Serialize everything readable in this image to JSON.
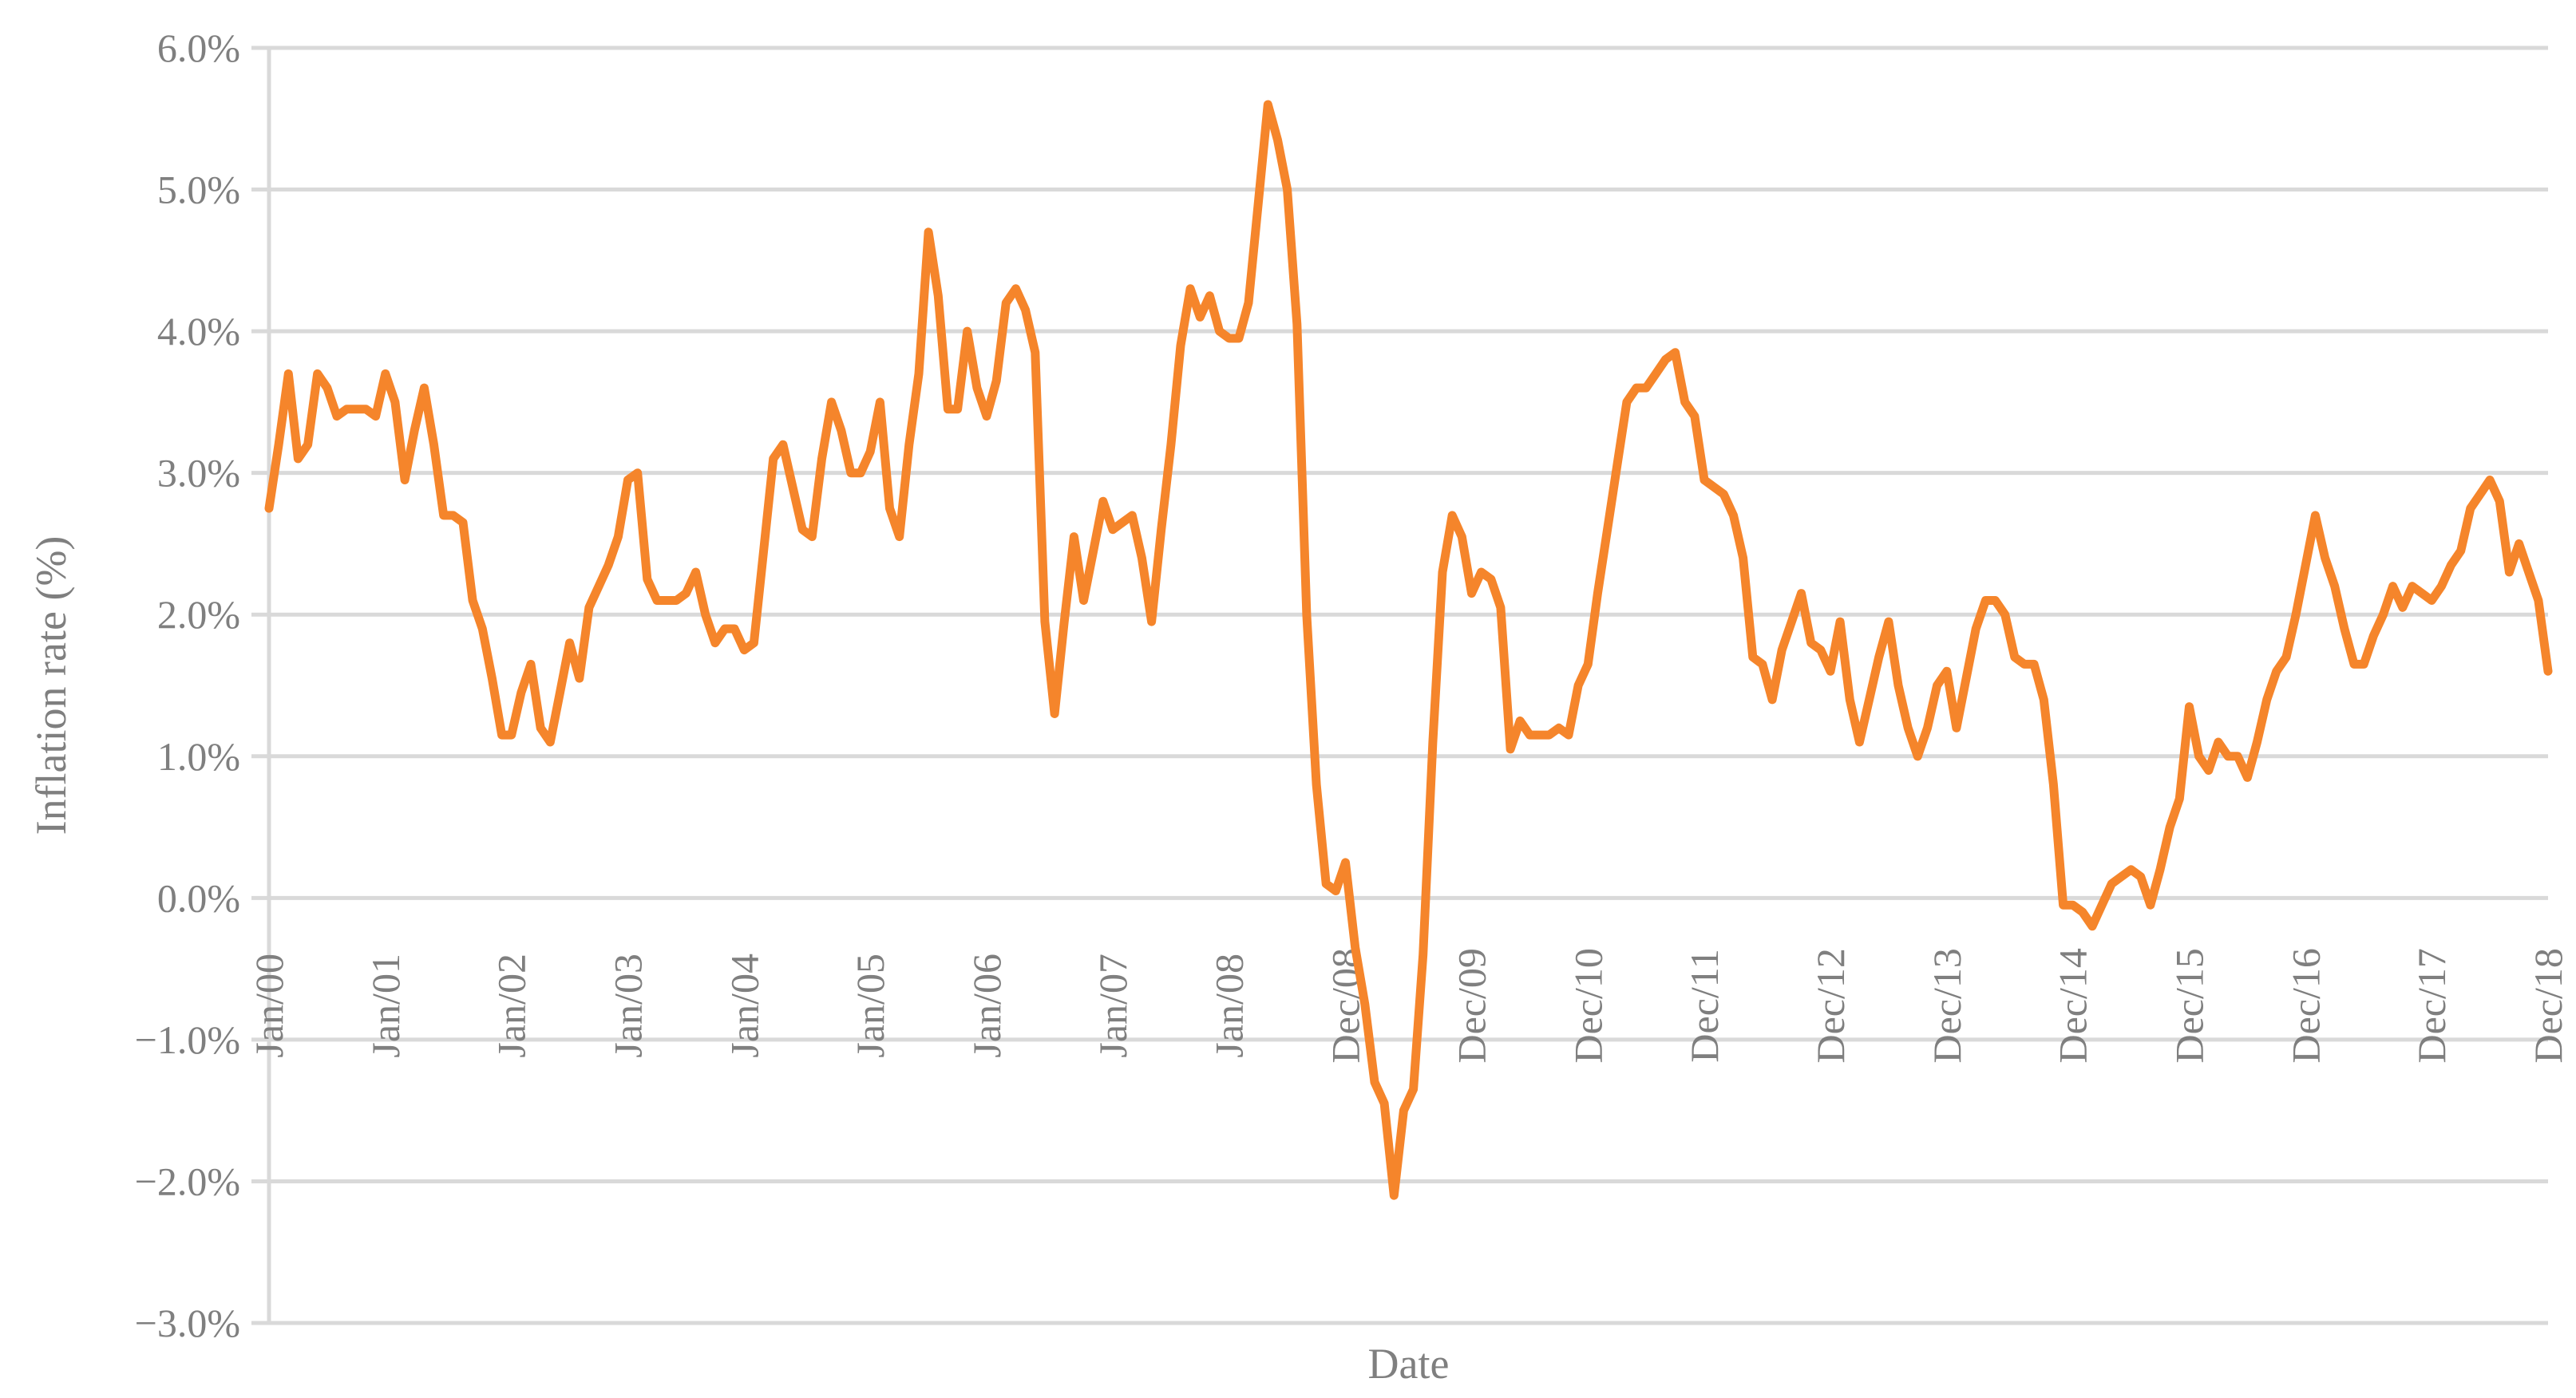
{
  "chart_data": {
    "type": "line",
    "title": "",
    "xlabel": "Date",
    "ylabel": "Inflation rate (%)",
    "ylim": [
      -3.0,
      6.0
    ],
    "ytick_step": 1.0,
    "ytick_labels": [
      "−3.0%",
      "−2.0%",
      "−1.0%",
      "0.0%",
      "1.0%",
      "2.0%",
      "3.0%",
      "4.0%",
      "5.0%",
      "6.0%"
    ],
    "grid": true,
    "legend": "none",
    "line_color": "#f5852b",
    "xtick_labels": [
      "Jan/00",
      "Jan/01",
      "Jan/02",
      "Jan/03",
      "Jan/04",
      "Jan/05",
      "Jan/06",
      "Jan/07",
      "Jan/08",
      "Dec/08",
      "Dec/09",
      "Dec/10",
      "Dec/11",
      "Dec/12",
      "Dec/13",
      "Dec/14",
      "Dec/15",
      "Dec/16",
      "Dec/17",
      "Dec/18"
    ],
    "series": [
      {
        "values": [
          2.75,
          3.2,
          3.7,
          3.1,
          3.2,
          3.7,
          3.6,
          3.4,
          3.45,
          3.45,
          3.45,
          3.4,
          3.7,
          3.5,
          2.95,
          3.3,
          3.6,
          3.2,
          2.7,
          2.7,
          2.65,
          2.1,
          1.9,
          1.55,
          1.15,
          1.15,
          1.45,
          1.65,
          1.2,
          1.1,
          1.45,
          1.8,
          1.55,
          2.05,
          2.2,
          2.35,
          2.55,
          2.95,
          3.0,
          2.25,
          2.1,
          2.1,
          2.1,
          2.15,
          2.3,
          2.0,
          1.8,
          1.9,
          1.9,
          1.75,
          1.8,
          2.45,
          3.1,
          3.2,
          2.9,
          2.6,
          2.55,
          3.1,
          3.5,
          3.3,
          3.0,
          3.0,
          3.15,
          3.5,
          2.75,
          2.55,
          3.2,
          3.7,
          4.7,
          4.25,
          3.45,
          3.45,
          4.0,
          3.6,
          3.4,
          3.65,
          4.2,
          4.3,
          4.15,
          3.85,
          1.95,
          1.3,
          1.95,
          2.55,
          2.1,
          2.45,
          2.8,
          2.6,
          2.65,
          2.7,
          2.4,
          1.95,
          2.6,
          3.2,
          3.9,
          4.3,
          4.1,
          4.25,
          4.0,
          3.95,
          3.95,
          4.2,
          4.9,
          5.6,
          5.35,
          5.0,
          4.05,
          2.0,
          0.8,
          0.1,
          0.05,
          0.25,
          -0.35,
          -0.75,
          -1.3,
          -1.45,
          -2.1,
          -1.5,
          -1.35,
          -0.4,
          1.1,
          2.3,
          2.7,
          2.55,
          2.15,
          2.3,
          2.25,
          2.05,
          1.05,
          1.25,
          1.15,
          1.15,
          1.15,
          1.2,
          1.15,
          1.5,
          1.65,
          2.15,
          2.6,
          3.05,
          3.5,
          3.6,
          3.6,
          3.7,
          3.8,
          3.85,
          3.5,
          3.4,
          2.95,
          2.9,
          2.85,
          2.7,
          2.4,
          1.7,
          1.65,
          1.4,
          1.75,
          1.95,
          2.15,
          1.8,
          1.75,
          1.6,
          1.95,
          1.4,
          1.1,
          1.4,
          1.7,
          1.95,
          1.5,
          1.2,
          1.0,
          1.2,
          1.5,
          1.6,
          1.2,
          1.55,
          1.9,
          2.1,
          2.1,
          2.0,
          1.7,
          1.65,
          1.65,
          1.4,
          0.8,
          -0.05,
          -0.05,
          -0.1,
          -0.2,
          -0.05,
          0.1,
          0.15,
          0.2,
          0.15,
          -0.05,
          0.2,
          0.5,
          0.7,
          1.35,
          1.0,
          0.9,
          1.1,
          1.0,
          1.0,
          0.85,
          1.1,
          1.4,
          1.6,
          1.7,
          2.0,
          2.35,
          2.7,
          2.4,
          2.2,
          1.9,
          1.65,
          1.65,
          1.85,
          2.0,
          2.2,
          2.05,
          2.2,
          2.15,
          2.1,
          2.2,
          2.35,
          2.45,
          2.75,
          2.85,
          2.95,
          2.8,
          2.3,
          2.5,
          2.3,
          2.1,
          1.6
        ]
      }
    ]
  }
}
